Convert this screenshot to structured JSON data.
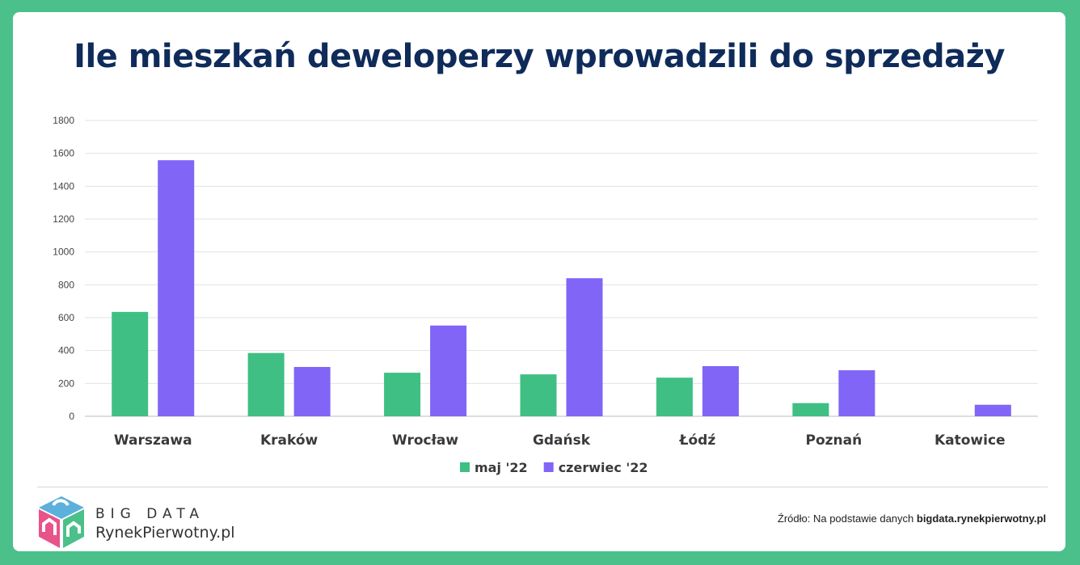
{
  "title": "Ile mieszkań deweloperzy wprowadzili do sprzedaży",
  "chart_data": {
    "type": "bar",
    "categories": [
      "Warszawa",
      "Kraków",
      "Wrocław",
      "Gdańsk",
      "Łódź",
      "Poznań",
      "Katowice"
    ],
    "series": [
      {
        "name": "maj '22",
        "color": "#3fbf83",
        "values": [
          635,
          385,
          265,
          255,
          235,
          80,
          0
        ]
      },
      {
        "name": "czerwiec '22",
        "color": "#8065f6",
        "values": [
          1558,
          300,
          552,
          840,
          305,
          280,
          70
        ]
      }
    ],
    "ylim": [
      0,
      1800
    ],
    "yticks": [
      0,
      200,
      400,
      600,
      800,
      1000,
      1200,
      1400,
      1600,
      1800
    ],
    "grid": true,
    "legend_position": "bottom"
  },
  "footer": {
    "brand_line1": "BIG DATA",
    "brand_line2": "RynekPierwotny.pl",
    "source_prefix": "Źródło: Na podstawie danych ",
    "source_site": "bigdata.rynekpierwotny.pl"
  }
}
